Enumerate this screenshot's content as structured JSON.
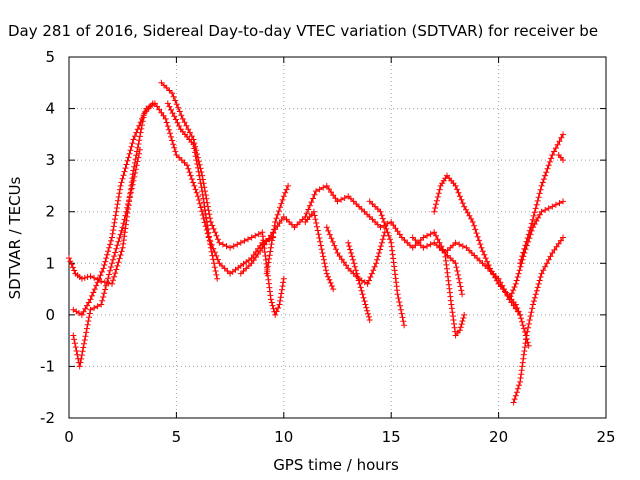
{
  "chart_data": {
    "type": "scatter",
    "title": "Day 281 of 2016, Sidereal Day-to-day VTEC variation (SDTVAR) for receiver be",
    "xlabel": "GPS time / hours",
    "ylabel": "SDTVAR / TECUs",
    "xlim": [
      0,
      25
    ],
    "ylim": [
      -2,
      5
    ],
    "xticks": [
      "0",
      "5",
      "10",
      "15",
      "20",
      "25"
    ],
    "yticks": [
      "-2",
      "-1",
      "0",
      "1",
      "2",
      "3",
      "4",
      "5"
    ],
    "grid": true,
    "marker": "+",
    "color": "#ff0000",
    "series": [
      {
        "x": [
          0.0,
          0.3,
          0.6,
          1.0,
          1.5,
          2.0,
          2.5,
          3.0,
          3.5,
          3.9
        ],
        "y": [
          1.1,
          0.8,
          0.7,
          0.75,
          0.65,
          0.6,
          1.3,
          2.8,
          3.9,
          4.1
        ]
      },
      {
        "x": [
          0.2,
          0.5,
          1.0,
          1.5,
          2.0,
          2.5,
          3.0,
          3.3
        ],
        "y": [
          -0.4,
          -1.0,
          0.1,
          0.2,
          1.0,
          1.7,
          2.6,
          3.2
        ]
      },
      {
        "x": [
          0.2,
          0.6,
          1.0,
          1.6,
          2.0,
          2.4,
          3.0,
          3.6,
          4.0,
          4.5,
          5.0,
          5.5,
          6.0,
          6.5,
          7.0,
          7.5,
          8.0,
          8.5,
          9.0,
          9.5
        ],
        "y": [
          0.1,
          0.0,
          0.3,
          0.9,
          1.5,
          2.5,
          3.4,
          4.0,
          4.1,
          3.8,
          3.1,
          2.9,
          2.3,
          1.5,
          1.0,
          0.8,
          0.95,
          1.1,
          1.4,
          1.5
        ]
      },
      {
        "x": [
          4.3,
          4.8,
          5.3,
          5.8,
          6.2,
          6.6,
          7.0,
          7.5,
          8.0,
          8.5,
          9.0,
          9.4,
          9.6,
          9.8,
          10.0
        ],
        "y": [
          4.5,
          4.3,
          3.8,
          3.4,
          2.7,
          1.8,
          1.4,
          1.3,
          1.4,
          1.5,
          1.6,
          0.3,
          0.0,
          0.2,
          0.7
        ]
      },
      {
        "x": [
          4.6,
          5.2,
          5.8,
          6.2,
          6.6,
          6.9
        ],
        "y": [
          4.1,
          3.6,
          3.3,
          2.4,
          1.3,
          0.7
        ]
      },
      {
        "x": [
          8.0,
          8.5,
          9.0,
          9.5,
          10.0,
          10.5,
          11.0,
          11.5,
          12.0,
          12.5,
          13.0,
          13.5,
          14.0,
          14.5,
          15.0,
          15.5,
          16.0,
          16.5,
          17.0,
          17.5,
          18.0,
          18.5,
          19.0,
          19.5,
          20.0,
          20.5,
          21.0,
          21.4
        ],
        "y": [
          0.8,
          1.0,
          1.3,
          1.6,
          1.9,
          1.7,
          1.9,
          2.4,
          2.5,
          2.2,
          2.3,
          2.1,
          1.9,
          1.7,
          1.8,
          1.5,
          1.3,
          1.5,
          1.6,
          1.2,
          1.4,
          1.3,
          1.1,
          0.9,
          0.7,
          0.3,
          0.0,
          -0.6
        ]
      },
      {
        "x": [
          9.2,
          9.6,
          10.0,
          10.2
        ],
        "y": [
          0.8,
          1.8,
          2.3,
          2.5
        ]
      },
      {
        "x": [
          11.0,
          11.4,
          11.8,
          12.0,
          12.3
        ],
        "y": [
          1.8,
          2.0,
          1.2,
          0.8,
          0.5
        ]
      },
      {
        "x": [
          12.0,
          12.5,
          13.0,
          13.5,
          13.9,
          14.3,
          14.7
        ],
        "y": [
          1.7,
          1.2,
          0.9,
          0.7,
          0.6,
          1.0,
          1.6
        ]
      },
      {
        "x": [
          13.0,
          13.4,
          13.8,
          14.0
        ],
        "y": [
          1.4,
          0.8,
          0.2,
          -0.1
        ]
      },
      {
        "x": [
          14.0,
          14.5,
          15.0,
          15.3,
          15.6
        ],
        "y": [
          2.2,
          2.0,
          1.4,
          0.4,
          -0.2
        ]
      },
      {
        "x": [
          16.0,
          16.5,
          17.0,
          17.5,
          18.0,
          18.3
        ],
        "y": [
          1.5,
          1.3,
          1.4,
          1.2,
          1.0,
          0.4
        ]
      },
      {
        "x": [
          17.5,
          17.8,
          18.0,
          18.2,
          18.4
        ],
        "y": [
          1.2,
          0.2,
          -0.4,
          -0.3,
          0.0
        ]
      },
      {
        "x": [
          17.0,
          17.3,
          17.6,
          18.0,
          18.4,
          18.8,
          19.2,
          19.6,
          20.0,
          20.4,
          20.8,
          21.0
        ],
        "y": [
          2.0,
          2.5,
          2.7,
          2.5,
          2.1,
          1.8,
          1.3,
          0.9,
          0.6,
          0.4,
          0.2,
          0.0
        ]
      },
      {
        "x": [
          20.7,
          21.0,
          21.3,
          21.6,
          22.0,
          22.5,
          23.0
        ],
        "y": [
          -1.7,
          -1.3,
          -0.4,
          0.2,
          0.8,
          1.2,
          1.5
        ]
      },
      {
        "x": [
          20.5,
          20.8,
          21.2,
          21.6,
          22.0,
          22.5,
          23.0
        ],
        "y": [
          0.3,
          0.6,
          1.2,
          1.7,
          2.0,
          2.1,
          2.2
        ]
      },
      {
        "x": [
          21.0,
          21.5,
          22.0,
          22.5,
          23.0
        ],
        "y": [
          1.0,
          1.7,
          2.5,
          3.1,
          3.5
        ]
      },
      {
        "x": [
          22.8,
          23.0
        ],
        "y": [
          3.1,
          3.0
        ]
      }
    ]
  }
}
